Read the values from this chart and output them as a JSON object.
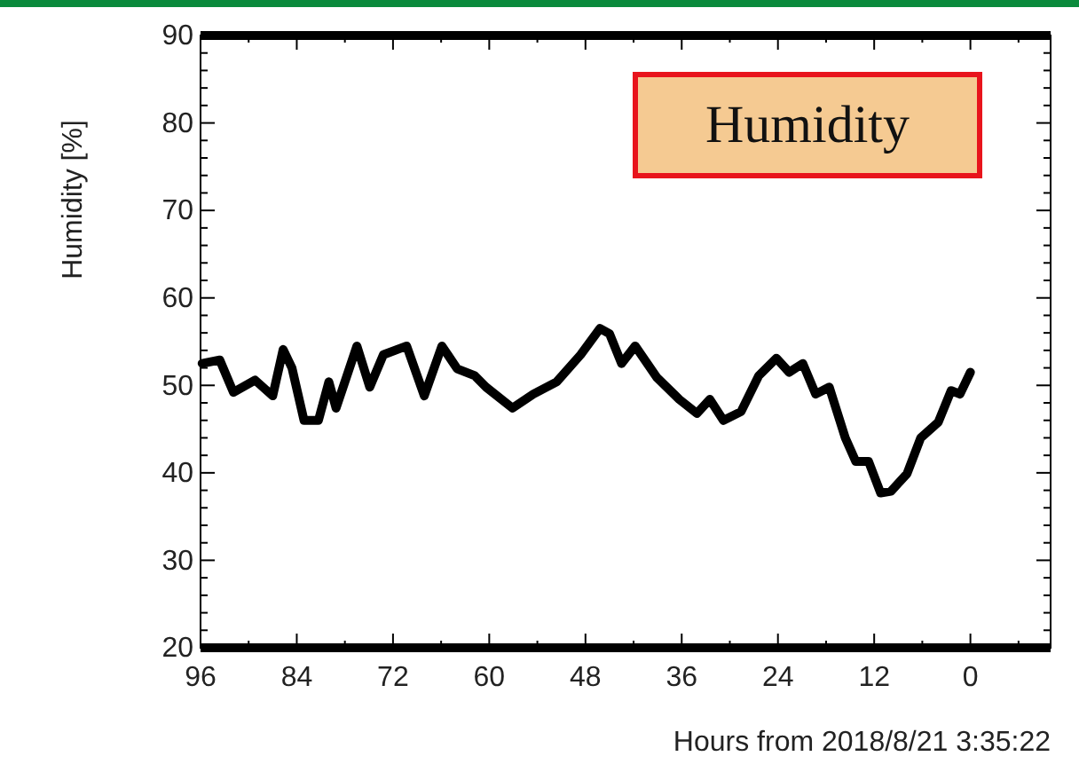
{
  "chart_data": {
    "type": "line",
    "xlabel": "Hours from 2018/8/21 3:35:22",
    "ylabel": "Humidity [%]",
    "annotations": [
      "Humidity"
    ],
    "x": [
      95.8,
      93.6,
      91.9,
      89.2,
      87,
      85.7,
      84.6,
      83.1,
      81.3,
      80,
      79.1,
      76.5,
      74.9,
      73.2,
      70.3,
      68.1,
      65.9,
      64,
      61.8,
      60.4,
      57.1,
      54.5,
      51.6,
      48.6,
      46.2,
      45,
      43.5,
      41.8,
      39.1,
      36.3,
      34.1,
      32.5,
      30.8,
      28.6,
      26.4,
      24.2,
      22.6,
      20.9,
      19.3,
      17.6,
      15.6,
      14.3,
      12.7,
      11.2,
      9.9,
      7.9,
      6.2,
      4,
      2.4,
      1.3,
      0
    ],
    "series": [
      {
        "color": "#000000",
        "values": [
          52.5,
          52.9,
          49.2,
          50.6,
          48.8,
          54.1,
          52,
          46,
          46,
          50.4,
          47.4,
          54.5,
          49.8,
          53.5,
          54.5,
          48.8,
          54.5,
          51.9,
          51.1,
          49.8,
          47.4,
          49,
          50.4,
          53.5,
          56.5,
          55.9,
          52.5,
          54.5,
          50.9,
          48.4,
          46.8,
          48.4,
          46,
          47,
          51.1,
          53.1,
          51.5,
          52.5,
          49,
          49.8,
          44,
          41.3,
          41.3,
          37.7,
          37.9,
          39.9,
          44,
          45.8,
          49.4,
          49,
          51.5
        ]
      }
    ],
    "xlim": [
      96,
      -10
    ],
    "xticks": [
      96,
      {
        "value": 90,
        "label": null
      },
      84,
      {
        "value": 78,
        "label": null
      },
      72,
      {
        "value": 66,
        "label": null
      },
      60,
      {
        "value": 54,
        "label": null
      },
      48,
      {
        "value": 42,
        "label": null
      },
      36,
      {
        "value": 30,
        "label": null
      },
      24,
      {
        "value": 18,
        "label": null
      },
      12,
      {
        "value": 6,
        "label": null
      },
      0,
      {
        "value": -6,
        "label": null
      }
    ],
    "ylim": [
      20,
      90
    ],
    "yticks": [
      20,
      {
        "value": 22,
        "label": null
      },
      {
        "value": 24,
        "label": null
      },
      {
        "value": 26,
        "label": null
      },
      {
        "value": 28,
        "label": null
      },
      30,
      {
        "value": 32,
        "label": null
      },
      {
        "value": 34,
        "label": null
      },
      {
        "value": 36,
        "label": null
      },
      {
        "value": 38,
        "label": null
      },
      40,
      {
        "value": 42,
        "label": null
      },
      {
        "value": 44,
        "label": null
      },
      {
        "value": 46,
        "label": null
      },
      {
        "value": 48,
        "label": null
      },
      50,
      {
        "value": 52,
        "label": null
      },
      {
        "value": 54,
        "label": null
      },
      {
        "value": 56,
        "label": null
      },
      {
        "value": 58,
        "label": null
      },
      60,
      {
        "value": 62,
        "label": null
      },
      {
        "value": 64,
        "label": null
      },
      {
        "value": 66,
        "label": null
      },
      {
        "value": 68,
        "label": null
      },
      70,
      {
        "value": 72,
        "label": null
      },
      {
        "value": 74,
        "label": null
      },
      {
        "value": 76,
        "label": null
      },
      {
        "value": 78,
        "label": null
      },
      80,
      {
        "value": 82,
        "label": null
      },
      {
        "value": 84,
        "label": null
      },
      {
        "value": 86,
        "label": null
      },
      {
        "value": 88,
        "label": null
      },
      90
    ],
    "grid": false,
    "legend": false,
    "marker": "none",
    "line_style": "solid"
  }
}
